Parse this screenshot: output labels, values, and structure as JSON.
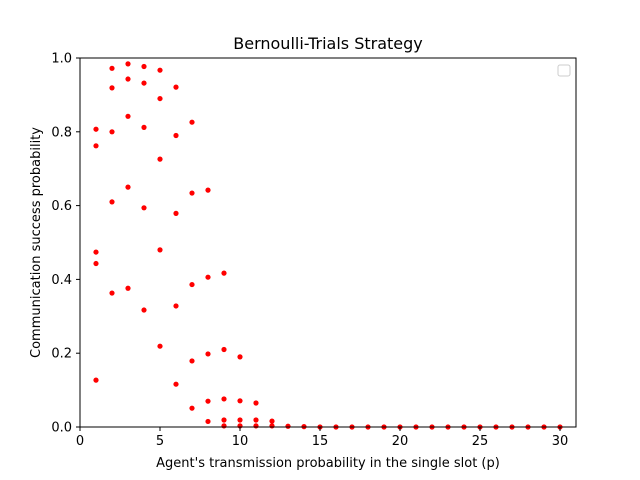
{
  "chart_data": {
    "type": "scatter",
    "title": "Bernoulli-Trials Strategy",
    "xlabel": "Agent's transmission probability in the single slot (p)",
    "ylabel": "Communication success probability",
    "xlim": [
      0,
      31
    ],
    "ylim": [
      0,
      1
    ],
    "xticks": [
      0,
      5,
      10,
      15,
      20,
      25,
      30
    ],
    "yticks": [
      0.0,
      0.2,
      0.4,
      0.6,
      0.8,
      1.0
    ],
    "xtick_labels": [
      "0",
      "5",
      "10",
      "15",
      "20",
      "25",
      "30"
    ],
    "ytick_labels": [
      "0.0",
      "0.2",
      "0.4",
      "0.6",
      "0.8",
      "1.0"
    ],
    "grid": false,
    "legend": {
      "placement": "top-right",
      "entries": []
    },
    "series": [
      {
        "color": "#ff0000",
        "points": [
          [
            1,
            0.807
          ],
          [
            1,
            0.762
          ],
          [
            1,
            0.474
          ],
          [
            1,
            0.443
          ],
          [
            1,
            0.127
          ],
          [
            2,
            0.972
          ],
          [
            2,
            0.919
          ],
          [
            2,
            0.8
          ],
          [
            2,
            0.61
          ],
          [
            2,
            0.363
          ],
          [
            3,
            0.984
          ],
          [
            3,
            0.943
          ],
          [
            3,
            0.842
          ],
          [
            3,
            0.65
          ],
          [
            3,
            0.376
          ],
          [
            4,
            0.977
          ],
          [
            4,
            0.932
          ],
          [
            4,
            0.812
          ],
          [
            4,
            0.594
          ],
          [
            4,
            0.317
          ],
          [
            5,
            0.967
          ],
          [
            5,
            0.89
          ],
          [
            5,
            0.726
          ],
          [
            5,
            0.48
          ],
          [
            5,
            0.219
          ],
          [
            6,
            0.921
          ],
          [
            6,
            0.79
          ],
          [
            6,
            0.579
          ],
          [
            6,
            0.328
          ],
          [
            6,
            0.116
          ],
          [
            7,
            0.826
          ],
          [
            7,
            0.634
          ],
          [
            7,
            0.386
          ],
          [
            7,
            0.179
          ],
          [
            7,
            0.051
          ],
          [
            8,
            0.642
          ],
          [
            8,
            0.406
          ],
          [
            8,
            0.198
          ],
          [
            8,
            0.07
          ],
          [
            8,
            0.015
          ],
          [
            9,
            0.417
          ],
          [
            9,
            0.21
          ],
          [
            9,
            0.076
          ],
          [
            9,
            0.019
          ],
          [
            9,
            0.003
          ],
          [
            10,
            0.19
          ],
          [
            10,
            0.071
          ],
          [
            10,
            0.019
          ],
          [
            10,
            0.003
          ],
          [
            11,
            0.065
          ],
          [
            11,
            0.019
          ],
          [
            11,
            0.003
          ],
          [
            12,
            0.016
          ],
          [
            12,
            0.003
          ],
          [
            13,
            0.002
          ],
          [
            14,
            0.001
          ],
          [
            15,
            0.0
          ],
          [
            16,
            0.0
          ],
          [
            17,
            0.0
          ],
          [
            18,
            0.0
          ],
          [
            19,
            0.0
          ],
          [
            20,
            0.0
          ],
          [
            21,
            0.0
          ],
          [
            22,
            0.0
          ],
          [
            23,
            0.0
          ],
          [
            24,
            0.0
          ],
          [
            25,
            0.0
          ],
          [
            26,
            0.0
          ],
          [
            27,
            0.0
          ],
          [
            28,
            0.0
          ],
          [
            29,
            0.0
          ],
          [
            30,
            0.0
          ]
        ]
      }
    ]
  }
}
